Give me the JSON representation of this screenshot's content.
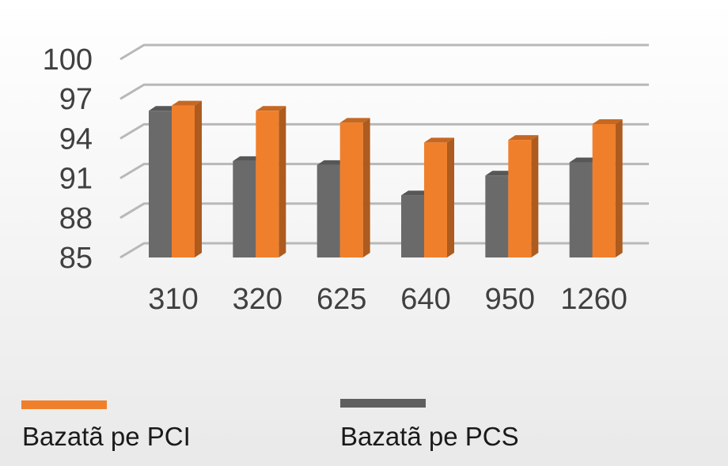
{
  "chart_data": {
    "type": "bar",
    "categories": [
      "310",
      "320",
      "625",
      "640",
      "950",
      "1260"
    ],
    "series": [
      {
        "name": "Bazatã pe PCS",
        "color": "#6b6a6a",
        "values": [
          96.1,
          92.3,
          92.0,
          89.7,
          91.2,
          92.2
        ]
      },
      {
        "name": "Bazatã pe PCI",
        "color": "#f07f2b",
        "values": [
          96.5,
          96.1,
          95.2,
          93.7,
          93.9,
          95.1
        ]
      }
    ],
    "yticks": [
      85,
      88,
      91,
      94,
      97,
      100
    ],
    "ylim": [
      85,
      100
    ],
    "grid": true,
    "legend_position": "bottom"
  },
  "legend": [
    {
      "label": "Bazatã pe PCI",
      "color": "#f07f2b"
    },
    {
      "label": "Bazatã pe PCS",
      "color": "#5f5f5f"
    }
  ]
}
